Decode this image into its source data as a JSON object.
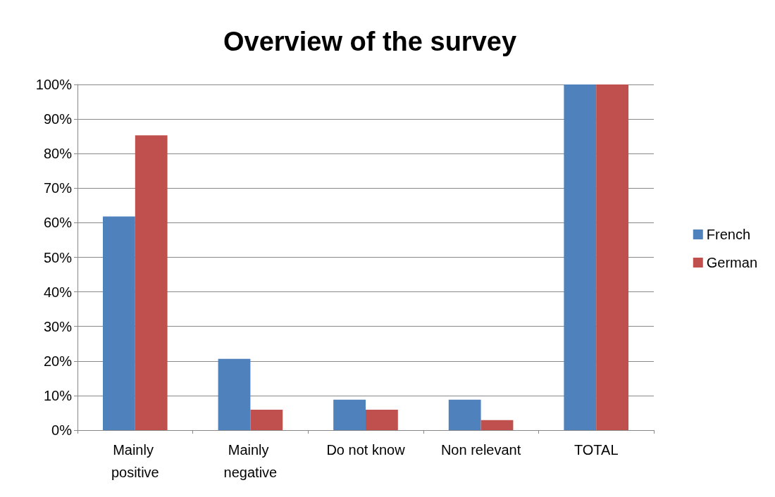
{
  "chart_data": {
    "type": "bar",
    "title": "Overview of the survey",
    "categories": [
      "Mainly positive",
      "Mainly negative",
      "Do not know",
      "Non relevant",
      "TOTAL"
    ],
    "series": [
      {
        "name": "French",
        "color": "#4f81bd",
        "values": [
          61.8,
          20.6,
          8.8,
          8.8,
          100
        ]
      },
      {
        "name": "German",
        "color": "#c0504d",
        "values": [
          85.3,
          5.9,
          5.9,
          2.9,
          100
        ]
      }
    ],
    "ylim": [
      0,
      100
    ],
    "yticks": [
      {
        "value": 0,
        "label": "0%"
      },
      {
        "value": 10,
        "label": "10%"
      },
      {
        "value": 20,
        "label": "20%"
      },
      {
        "value": 30,
        "label": "30%"
      },
      {
        "value": 40,
        "label": "40%"
      },
      {
        "value": 50,
        "label": "50%"
      },
      {
        "value": 60,
        "label": "60%"
      },
      {
        "value": 70,
        "label": "70%"
      },
      {
        "value": 80,
        "label": "80%"
      },
      {
        "value": 90,
        "label": "90%"
      },
      {
        "value": 100,
        "label": "100%"
      }
    ],
    "grid": "y",
    "legend": "right"
  }
}
